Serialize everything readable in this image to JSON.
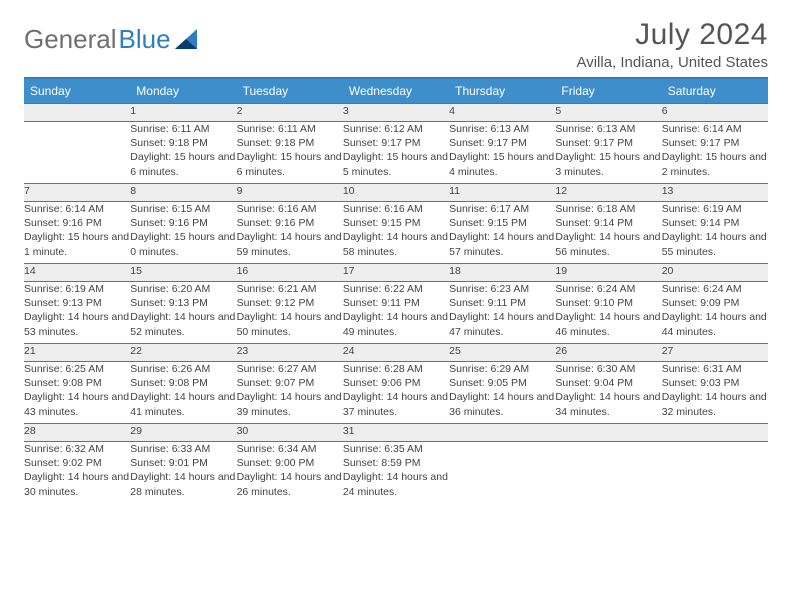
{
  "brand": {
    "name_a": "General",
    "name_b": "Blue"
  },
  "title": "July 2024",
  "location": "Avilla, Indiana, United States",
  "day_headers": [
    "Sunday",
    "Monday",
    "Tuesday",
    "Wednesday",
    "Thursday",
    "Friday",
    "Saturday"
  ],
  "styles": {
    "header_bg": "#3d8ecb",
    "border_color": "#2f7ec2",
    "daynum_bg": "#eeeeee",
    "page_bg": "#ffffff",
    "text_color": "#444444",
    "title_color": "#555555"
  },
  "weeks": [
    [
      null,
      {
        "n": "1",
        "sr": "Sunrise: 6:11 AM",
        "ss": "Sunset: 9:18 PM",
        "dl": "Daylight: 15 hours and 6 minutes."
      },
      {
        "n": "2",
        "sr": "Sunrise: 6:11 AM",
        "ss": "Sunset: 9:18 PM",
        "dl": "Daylight: 15 hours and 6 minutes."
      },
      {
        "n": "3",
        "sr": "Sunrise: 6:12 AM",
        "ss": "Sunset: 9:17 PM",
        "dl": "Daylight: 15 hours and 5 minutes."
      },
      {
        "n": "4",
        "sr": "Sunrise: 6:13 AM",
        "ss": "Sunset: 9:17 PM",
        "dl": "Daylight: 15 hours and 4 minutes."
      },
      {
        "n": "5",
        "sr": "Sunrise: 6:13 AM",
        "ss": "Sunset: 9:17 PM",
        "dl": "Daylight: 15 hours and 3 minutes."
      },
      {
        "n": "6",
        "sr": "Sunrise: 6:14 AM",
        "ss": "Sunset: 9:17 PM",
        "dl": "Daylight: 15 hours and 2 minutes."
      }
    ],
    [
      {
        "n": "7",
        "sr": "Sunrise: 6:14 AM",
        "ss": "Sunset: 9:16 PM",
        "dl": "Daylight: 15 hours and 1 minute."
      },
      {
        "n": "8",
        "sr": "Sunrise: 6:15 AM",
        "ss": "Sunset: 9:16 PM",
        "dl": "Daylight: 15 hours and 0 minutes."
      },
      {
        "n": "9",
        "sr": "Sunrise: 6:16 AM",
        "ss": "Sunset: 9:16 PM",
        "dl": "Daylight: 14 hours and 59 minutes."
      },
      {
        "n": "10",
        "sr": "Sunrise: 6:16 AM",
        "ss": "Sunset: 9:15 PM",
        "dl": "Daylight: 14 hours and 58 minutes."
      },
      {
        "n": "11",
        "sr": "Sunrise: 6:17 AM",
        "ss": "Sunset: 9:15 PM",
        "dl": "Daylight: 14 hours and 57 minutes."
      },
      {
        "n": "12",
        "sr": "Sunrise: 6:18 AM",
        "ss": "Sunset: 9:14 PM",
        "dl": "Daylight: 14 hours and 56 minutes."
      },
      {
        "n": "13",
        "sr": "Sunrise: 6:19 AM",
        "ss": "Sunset: 9:14 PM",
        "dl": "Daylight: 14 hours and 55 minutes."
      }
    ],
    [
      {
        "n": "14",
        "sr": "Sunrise: 6:19 AM",
        "ss": "Sunset: 9:13 PM",
        "dl": "Daylight: 14 hours and 53 minutes."
      },
      {
        "n": "15",
        "sr": "Sunrise: 6:20 AM",
        "ss": "Sunset: 9:13 PM",
        "dl": "Daylight: 14 hours and 52 minutes."
      },
      {
        "n": "16",
        "sr": "Sunrise: 6:21 AM",
        "ss": "Sunset: 9:12 PM",
        "dl": "Daylight: 14 hours and 50 minutes."
      },
      {
        "n": "17",
        "sr": "Sunrise: 6:22 AM",
        "ss": "Sunset: 9:11 PM",
        "dl": "Daylight: 14 hours and 49 minutes."
      },
      {
        "n": "18",
        "sr": "Sunrise: 6:23 AM",
        "ss": "Sunset: 9:11 PM",
        "dl": "Daylight: 14 hours and 47 minutes."
      },
      {
        "n": "19",
        "sr": "Sunrise: 6:24 AM",
        "ss": "Sunset: 9:10 PM",
        "dl": "Daylight: 14 hours and 46 minutes."
      },
      {
        "n": "20",
        "sr": "Sunrise: 6:24 AM",
        "ss": "Sunset: 9:09 PM",
        "dl": "Daylight: 14 hours and 44 minutes."
      }
    ],
    [
      {
        "n": "21",
        "sr": "Sunrise: 6:25 AM",
        "ss": "Sunset: 9:08 PM",
        "dl": "Daylight: 14 hours and 43 minutes."
      },
      {
        "n": "22",
        "sr": "Sunrise: 6:26 AM",
        "ss": "Sunset: 9:08 PM",
        "dl": "Daylight: 14 hours and 41 minutes."
      },
      {
        "n": "23",
        "sr": "Sunrise: 6:27 AM",
        "ss": "Sunset: 9:07 PM",
        "dl": "Daylight: 14 hours and 39 minutes."
      },
      {
        "n": "24",
        "sr": "Sunrise: 6:28 AM",
        "ss": "Sunset: 9:06 PM",
        "dl": "Daylight: 14 hours and 37 minutes."
      },
      {
        "n": "25",
        "sr": "Sunrise: 6:29 AM",
        "ss": "Sunset: 9:05 PM",
        "dl": "Daylight: 14 hours and 36 minutes."
      },
      {
        "n": "26",
        "sr": "Sunrise: 6:30 AM",
        "ss": "Sunset: 9:04 PM",
        "dl": "Daylight: 14 hours and 34 minutes."
      },
      {
        "n": "27",
        "sr": "Sunrise: 6:31 AM",
        "ss": "Sunset: 9:03 PM",
        "dl": "Daylight: 14 hours and 32 minutes."
      }
    ],
    [
      {
        "n": "28",
        "sr": "Sunrise: 6:32 AM",
        "ss": "Sunset: 9:02 PM",
        "dl": "Daylight: 14 hours and 30 minutes."
      },
      {
        "n": "29",
        "sr": "Sunrise: 6:33 AM",
        "ss": "Sunset: 9:01 PM",
        "dl": "Daylight: 14 hours and 28 minutes."
      },
      {
        "n": "30",
        "sr": "Sunrise: 6:34 AM",
        "ss": "Sunset: 9:00 PM",
        "dl": "Daylight: 14 hours and 26 minutes."
      },
      {
        "n": "31",
        "sr": "Sunrise: 6:35 AM",
        "ss": "Sunset: 8:59 PM",
        "dl": "Daylight: 14 hours and 24 minutes."
      },
      null,
      null,
      null
    ]
  ]
}
